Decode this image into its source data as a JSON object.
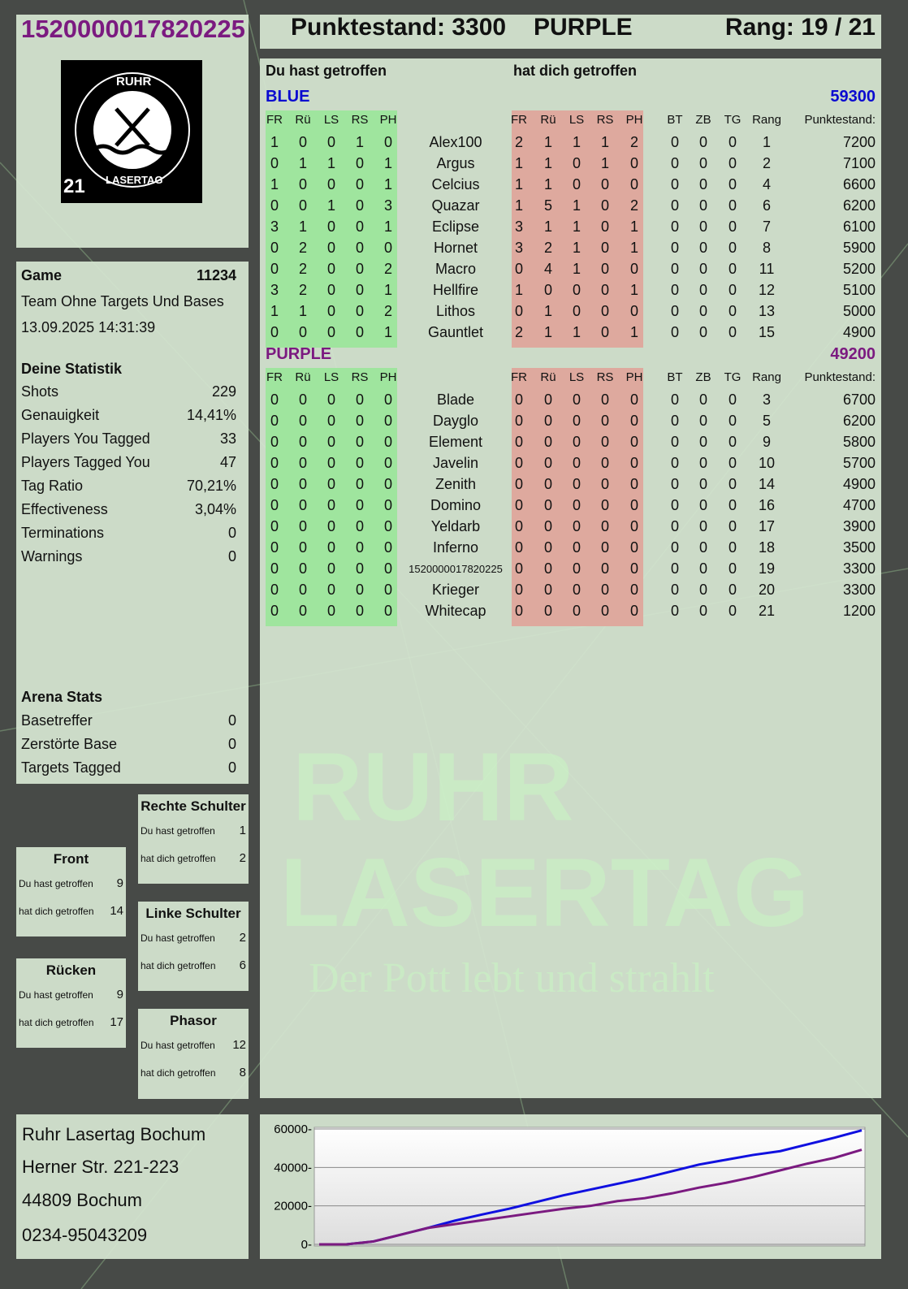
{
  "header": {
    "player": "1520000017820225",
    "score": "Punktestand: 3300",
    "team": "PURPLE",
    "rank": "Rang: 19 / 21"
  },
  "logo": {
    "top": "RUHR",
    "bottom": "LASERTAG",
    "badge": "21"
  },
  "watermark": {
    "line1": "RUHR",
    "line2": "LASERTAG",
    "slogan": "Der Pott lebt und strahlt"
  },
  "game": {
    "label": "Game",
    "id": "11234",
    "mode": "Team Ohne Targets Und Bases",
    "datetime": "13.09.2025 14:31:39"
  },
  "stats": {
    "title": "Deine Statistik",
    "items": [
      {
        "label": "Shots",
        "value": "229"
      },
      {
        "label": "Genauigkeit",
        "value": "14,41%"
      },
      {
        "label": "Players You Tagged",
        "value": "33"
      },
      {
        "label": "Players Tagged You",
        "value": "47"
      },
      {
        "label": "Tag Ratio",
        "value": "70,21%"
      },
      {
        "label": "Effectiveness",
        "value": "3,04%"
      },
      {
        "label": "Terminations",
        "value": "0"
      },
      {
        "label": "Warnings",
        "value": "0"
      }
    ]
  },
  "arena": {
    "title": "Arena Stats",
    "items": [
      {
        "label": "Basetreffer",
        "value": "0"
      },
      {
        "label": "Zerstörte Base",
        "value": "0"
      },
      {
        "label": "Targets Tagged",
        "value": "0"
      }
    ]
  },
  "hits": {
    "you_hit": "Du hast getroffen",
    "hit_you": "hat dich getroffen",
    "zones": [
      {
        "title": "Rechte Schulter",
        "you": "1",
        "them": "2"
      },
      {
        "title": "Front",
        "you": "9",
        "them": "14"
      },
      {
        "title": "Linke Schulter",
        "you": "2",
        "them": "6"
      },
      {
        "title": "Rücken",
        "you": "9",
        "them": "17"
      },
      {
        "title": "Phasor",
        "you": "12",
        "them": "8"
      }
    ]
  },
  "table": {
    "you_hit": "Du hast getroffen",
    "hit_you": "hat dich getroffen",
    "cols_hit": [
      "FR",
      "Rü",
      "LS",
      "RS",
      "PH"
    ],
    "cols_extra": [
      "BT",
      "ZB",
      "TG",
      "Rang",
      "Punktestand:"
    ],
    "teams": [
      {
        "name": "BLUE",
        "total": "59300",
        "color": "#0a0ad0",
        "players": [
          [
            "Alex100",
            [
              1,
              0,
              0,
              1,
              0
            ],
            [
              2,
              1,
              1,
              1,
              2
            ],
            [
              0,
              0,
              0
            ],
            1,
            7200
          ],
          [
            "Argus",
            [
              0,
              1,
              1,
              0,
              1
            ],
            [
              1,
              1,
              0,
              1,
              0
            ],
            [
              0,
              0,
              0
            ],
            2,
            7100
          ],
          [
            "Celcius",
            [
              1,
              0,
              0,
              0,
              1
            ],
            [
              1,
              1,
              0,
              0,
              0
            ],
            [
              0,
              0,
              0
            ],
            4,
            6600
          ],
          [
            "Quazar",
            [
              0,
              0,
              1,
              0,
              3
            ],
            [
              1,
              5,
              1,
              0,
              2
            ],
            [
              0,
              0,
              0
            ],
            6,
            6200
          ],
          [
            "Eclipse",
            [
              3,
              1,
              0,
              0,
              1
            ],
            [
              3,
              1,
              1,
              0,
              1
            ],
            [
              0,
              0,
              0
            ],
            7,
            6100
          ],
          [
            "Hornet",
            [
              0,
              2,
              0,
              0,
              0
            ],
            [
              3,
              2,
              1,
              0,
              1
            ],
            [
              0,
              0,
              0
            ],
            8,
            5900
          ],
          [
            "Macro",
            [
              0,
              2,
              0,
              0,
              2
            ],
            [
              0,
              4,
              1,
              0,
              0
            ],
            [
              0,
              0,
              0
            ],
            11,
            5200
          ],
          [
            "Hellfire",
            [
              3,
              2,
              0,
              0,
              1
            ],
            [
              1,
              0,
              0,
              0,
              1
            ],
            [
              0,
              0,
              0
            ],
            12,
            5100
          ],
          [
            "Lithos",
            [
              1,
              1,
              0,
              0,
              2
            ],
            [
              0,
              1,
              0,
              0,
              0
            ],
            [
              0,
              0,
              0
            ],
            13,
            5000
          ],
          [
            "Gauntlet",
            [
              0,
              0,
              0,
              0,
              1
            ],
            [
              2,
              1,
              1,
              0,
              1
            ],
            [
              0,
              0,
              0
            ],
            15,
            4900
          ]
        ]
      },
      {
        "name": "PURPLE",
        "total": "49200",
        "color": "#7b1a80",
        "players": [
          [
            "Blade",
            [
              0,
              0,
              0,
              0,
              0
            ],
            [
              0,
              0,
              0,
              0,
              0
            ],
            [
              0,
              0,
              0
            ],
            3,
            6700
          ],
          [
            "Dayglo",
            [
              0,
              0,
              0,
              0,
              0
            ],
            [
              0,
              0,
              0,
              0,
              0
            ],
            [
              0,
              0,
              0
            ],
            5,
            6200
          ],
          [
            "Element",
            [
              0,
              0,
              0,
              0,
              0
            ],
            [
              0,
              0,
              0,
              0,
              0
            ],
            [
              0,
              0,
              0
            ],
            9,
            5800
          ],
          [
            "Javelin",
            [
              0,
              0,
              0,
              0,
              0
            ],
            [
              0,
              0,
              0,
              0,
              0
            ],
            [
              0,
              0,
              0
            ],
            10,
            5700
          ],
          [
            "Zenith",
            [
              0,
              0,
              0,
              0,
              0
            ],
            [
              0,
              0,
              0,
              0,
              0
            ],
            [
              0,
              0,
              0
            ],
            14,
            4900
          ],
          [
            "Domino",
            [
              0,
              0,
              0,
              0,
              0
            ],
            [
              0,
              0,
              0,
              0,
              0
            ],
            [
              0,
              0,
              0
            ],
            16,
            4700
          ],
          [
            "Yeldarb",
            [
              0,
              0,
              0,
              0,
              0
            ],
            [
              0,
              0,
              0,
              0,
              0
            ],
            [
              0,
              0,
              0
            ],
            17,
            3900
          ],
          [
            "Inferno",
            [
              0,
              0,
              0,
              0,
              0
            ],
            [
              0,
              0,
              0,
              0,
              0
            ],
            [
              0,
              0,
              0
            ],
            18,
            3500
          ],
          [
            "1520000017820225",
            [
              0,
              0,
              0,
              0,
              0
            ],
            [
              0,
              0,
              0,
              0,
              0
            ],
            [
              0,
              0,
              0
            ],
            19,
            3300
          ],
          [
            "Krieger",
            [
              0,
              0,
              0,
              0,
              0
            ],
            [
              0,
              0,
              0,
              0,
              0
            ],
            [
              0,
              0,
              0
            ],
            20,
            3300
          ],
          [
            "Whitecap",
            [
              0,
              0,
              0,
              0,
              0
            ],
            [
              0,
              0,
              0,
              0,
              0
            ],
            [
              0,
              0,
              0
            ],
            21,
            1200
          ]
        ]
      }
    ]
  },
  "address": [
    "Ruhr Lasertag Bochum",
    "Herner Str. 221-223",
    "44809 Bochum",
    "0234-95043209"
  ],
  "chart_data": {
    "type": "line",
    "ylim": [
      0,
      60000
    ],
    "yticks": [
      "0",
      "20000",
      "40000",
      "60000"
    ],
    "grid": "horizontal",
    "x": [
      0,
      1,
      2,
      3,
      4,
      5,
      6,
      7,
      8,
      9,
      10,
      11,
      12,
      13,
      14,
      15,
      16,
      17,
      18,
      19,
      20
    ],
    "series": [
      {
        "color": "#1010e0",
        "values": [
          0,
          0,
          1500,
          5000,
          8500,
          12300,
          15500,
          18500,
          22000,
          25500,
          28500,
          31500,
          34500,
          38000,
          41500,
          44000,
          46500,
          48500,
          52000,
          55500,
          59300
        ]
      },
      {
        "color": "#7b1a80",
        "values": [
          0,
          0,
          1500,
          5000,
          8500,
          10500,
          12500,
          14500,
          16500,
          18500,
          20000,
          22500,
          24000,
          26500,
          29500,
          32000,
          35000,
          38500,
          42000,
          45000,
          49200
        ]
      }
    ]
  }
}
